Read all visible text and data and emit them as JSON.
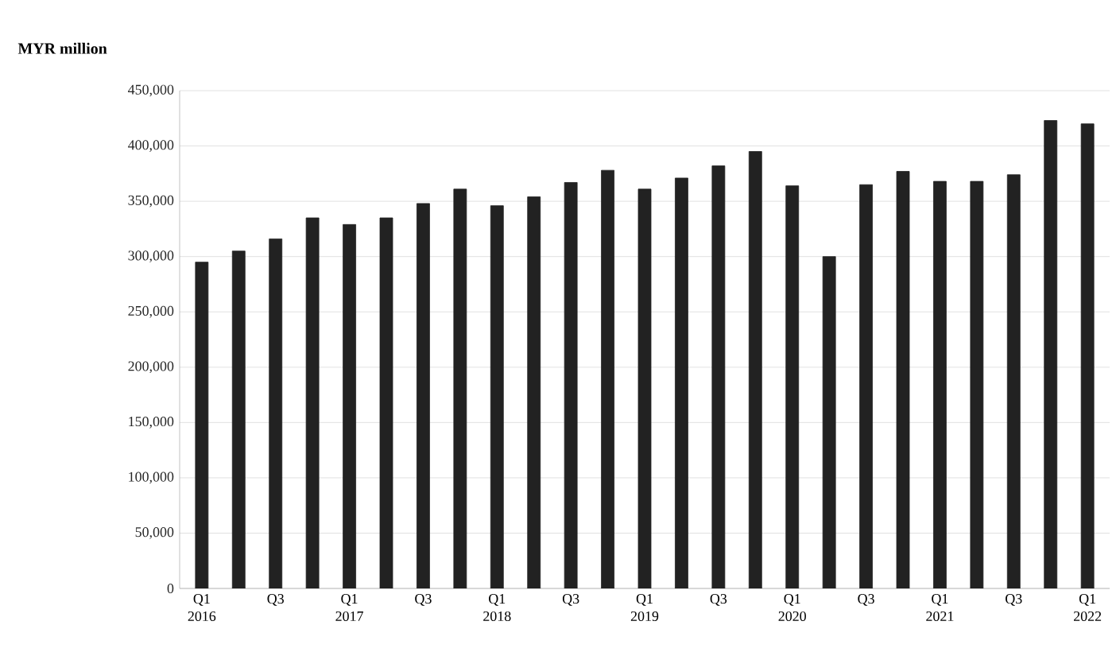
{
  "chart_data": {
    "type": "bar",
    "ylabel": "MYR million",
    "categories": [
      "Q1 2016",
      null,
      "Q3",
      null,
      "Q1 2017",
      null,
      "Q3",
      null,
      "Q1 2018",
      null,
      "Q3",
      null,
      "Q1 2019",
      null,
      "Q3",
      null,
      "Q1 2020",
      null,
      "Q3",
      null,
      "Q1 2021",
      null,
      "Q3",
      null,
      "Q1 2022"
    ],
    "values": [
      295000,
      305000,
      316000,
      335000,
      329000,
      335000,
      348000,
      361000,
      346000,
      354000,
      367000,
      378000,
      361000,
      371000,
      382000,
      395000,
      364000,
      300000,
      365000,
      377000,
      368000,
      368000,
      374000,
      423000,
      420000
    ],
    "color": "#222222",
    "ylim": [
      0,
      450000
    ],
    "yticks": [
      {
        "value": 0,
        "label": "0"
      },
      {
        "value": 50000,
        "label": "50,000"
      },
      {
        "value": 100000,
        "label": "100,000"
      },
      {
        "value": 150000,
        "label": "150,000"
      },
      {
        "value": 200000,
        "label": "200,000"
      },
      {
        "value": 250000,
        "label": "250,000"
      },
      {
        "value": 300000,
        "label": "300,000"
      },
      {
        "value": 350000,
        "label": "350,000"
      },
      {
        "value": 400000,
        "label": "400,000"
      },
      {
        "value": 450000,
        "label": "450,000"
      }
    ],
    "grid": "y"
  }
}
